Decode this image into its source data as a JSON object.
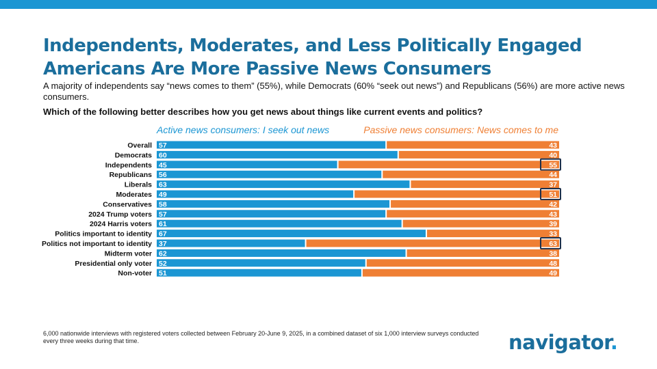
{
  "title": "Independents, Moderates, and Less Politically Engaged Americans Are More Passive News Consumers",
  "subtitle": "A majority of independents say “news comes to them” (55%), while Democrats (60% “seek out news”) and Republicans (56%) are more active news consumers.",
  "question": "Which of the following better describes how you get news about things like current events and politics?",
  "footnote": "6,000 nationwide interviews with registered voters collected between February 20-June 9, 2025, in a combined dataset of six 1,000 interview surveys conducted every three weeks during that time.",
  "logo": {
    "text": "navigator",
    "dot": "."
  },
  "colors": {
    "active": "#1b96d3",
    "passive": "#ef7f34",
    "highlight": "#1c2f4a",
    "title": "#1b6e9c"
  },
  "chart_data": {
    "type": "bar",
    "orientation": "horizontal-stacked-100",
    "title": "Which of the following better describes how you get news about things like current events and politics?",
    "series": [
      {
        "name": "Active news consumers: I seek out news",
        "values": [
          57,
          60,
          45,
          56,
          63,
          49,
          58,
          57,
          61,
          67,
          37,
          62,
          52,
          51
        ]
      },
      {
        "name": "Passive news consumers: News comes to me",
        "values": [
          43,
          40,
          55,
          44,
          37,
          51,
          42,
          43,
          39,
          33,
          63,
          38,
          48,
          49
        ]
      }
    ],
    "categories": [
      "Overall",
      "Democrats",
      "Independents",
      "Republicans",
      "Liberals",
      "Moderates",
      "Conservatives",
      "2024 Trump voters",
      "2024 Harris voters",
      "Politics important to identity",
      "Politics not important to identity",
      "Midterm voter",
      "Presidential only voter",
      "Non-voter"
    ],
    "groups": [
      [
        0
      ],
      [
        1,
        2,
        3
      ],
      [
        4,
        5,
        6
      ],
      [
        7,
        8
      ],
      [
        9,
        10
      ],
      [
        11,
        12,
        13
      ]
    ],
    "highlighted_passive": [
      "Independents",
      "Moderates",
      "Politics not important to identity"
    ],
    "xlim": [
      0,
      100
    ]
  }
}
